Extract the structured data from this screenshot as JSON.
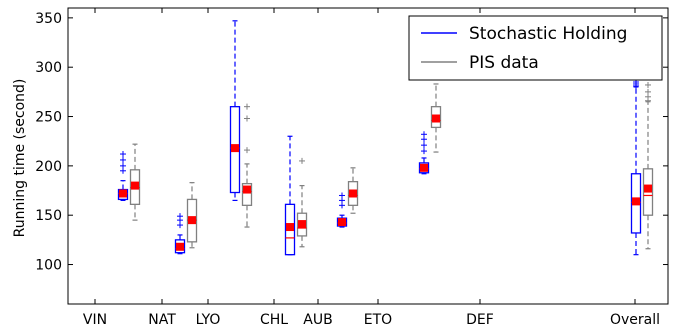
{
  "chart_data": {
    "type": "box",
    "title": "",
    "xlabel": "",
    "ylabel": "Running time (second)",
    "ylim": [
      60,
      360
    ],
    "yticks": [
      100,
      150,
      200,
      250,
      300,
      350
    ],
    "grid": false,
    "legend_position": "top-right",
    "categories": [
      "VIN",
      "NAT",
      "LYO",
      "CHL",
      "AUB",
      "ETO",
      "DEF",
      "Overall"
    ],
    "series": [
      {
        "name": "Stochastic Holding",
        "color": "#0000ff",
        "boxes": [
          {
            "category": "VIN",
            "whislo": 165,
            "q1": 166,
            "med": 172,
            "q3": 176,
            "whishi": 185,
            "mean": 172,
            "fliers": [
              195,
              200,
              206,
              212
            ]
          },
          {
            "category": "NAT",
            "whislo": 111,
            "q1": 112,
            "med": 116,
            "q3": 125,
            "whishi": 130,
            "mean": 118,
            "fliers": [
              140,
              145,
              149
            ]
          },
          {
            "category": "LYO",
            "whislo": 165,
            "q1": 173,
            "med": 218,
            "q3": 260,
            "whishi": 347,
            "mean": 218,
            "fliers": []
          },
          {
            "category": "CHL",
            "whislo": 110,
            "q1": 110,
            "med": 127,
            "q3": 161,
            "whishi": 230,
            "mean": 138,
            "fliers": []
          },
          {
            "category": "AUB",
            "whislo": 138,
            "q1": 139,
            "med": 142,
            "q3": 147,
            "whishi": 150,
            "mean": 143,
            "fliers": [
              160,
              165,
              170
            ]
          },
          {
            "category": "DEF",
            "whislo": 192,
            "q1": 193,
            "med": 197,
            "q3": 203,
            "whishi": 208,
            "mean": 198,
            "fliers": [
              215,
              221,
              227,
              232
            ]
          },
          {
            "category": "Overall",
            "whislo": 110,
            "q1": 132,
            "med": 163,
            "q3": 192,
            "whishi": 280,
            "mean": 164,
            "fliers": [
              281,
              283,
              285,
              287,
              289
            ]
          }
        ]
      },
      {
        "name": "PIS data",
        "color": "#808080",
        "boxes": [
          {
            "category": "VIN",
            "whislo": 145,
            "q1": 161,
            "med": 178,
            "q3": 196,
            "whishi": 222,
            "mean": 180,
            "fliers": []
          },
          {
            "category": "NAT",
            "whislo": 117,
            "q1": 123,
            "med": 145,
            "q3": 166,
            "whishi": 183,
            "mean": 145,
            "fliers": []
          },
          {
            "category": "LYO",
            "whislo": 138,
            "q1": 160,
            "med": 174,
            "q3": 182,
            "whishi": 202,
            "mean": 176,
            "fliers": [
              216,
              248,
              260
            ]
          },
          {
            "category": "CHL",
            "whislo": 118,
            "q1": 129,
            "med": 137,
            "q3": 152,
            "whishi": 180,
            "mean": 141,
            "fliers": [
              205
            ]
          },
          {
            "category": "AUB",
            "whislo": 152,
            "q1": 160,
            "med": 170,
            "q3": 184,
            "whishi": 198,
            "mean": 172,
            "fliers": []
          },
          {
            "category": "DEF",
            "whislo": 214,
            "q1": 239,
            "med": 246,
            "q3": 260,
            "whishi": 283,
            "mean": 248,
            "fliers": []
          },
          {
            "category": "Overall",
            "whislo": 116,
            "q1": 150,
            "med": 170,
            "q3": 197,
            "whishi": 265,
            "mean": 177,
            "fliers": [
              266,
              270,
              275,
              282
            ]
          }
        ]
      }
    ],
    "mean_marker_color": "#ff0000"
  }
}
